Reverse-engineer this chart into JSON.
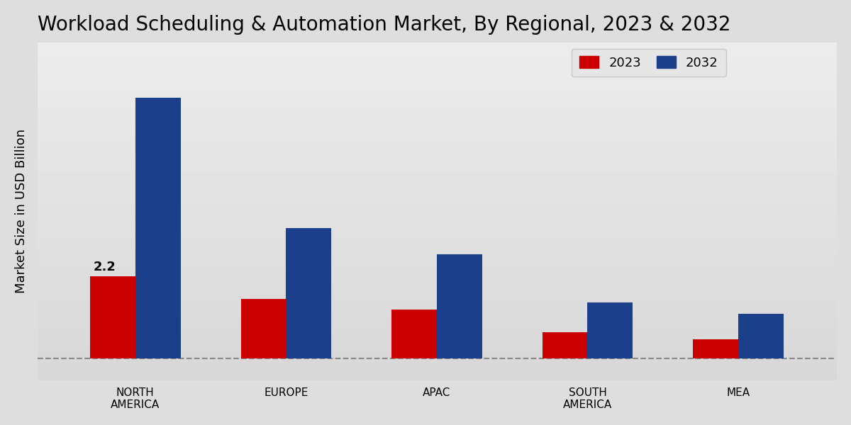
{
  "title": "Workload Scheduling & Automation Market, By Regional, 2023 & 2032",
  "ylabel": "Market Size in USD Billion",
  "categories": [
    "NORTH\nAMERICA",
    "EUROPE",
    "APAC",
    "SOUTH\nAMERICA",
    "MEA"
  ],
  "values_2023": [
    2.2,
    1.6,
    1.3,
    0.7,
    0.5
  ],
  "values_2032": [
    7.0,
    3.5,
    2.8,
    1.5,
    1.2
  ],
  "color_2023": "#CC0000",
  "color_2032": "#1B3F8B",
  "bar_width": 0.3,
  "annotation_2023_na": "2.2",
  "legend_labels": [
    "2023",
    "2032"
  ],
  "title_fontsize": 20,
  "ylabel_fontsize": 13,
  "tick_fontsize": 11,
  "ylim_max": 8.5,
  "xlim_left": -0.65,
  "xlim_right": 4.65,
  "bg_color_top": "#D4D4D4",
  "bg_color_bottom": "#F0F0F0",
  "fig_bg": "#DEDEDE"
}
